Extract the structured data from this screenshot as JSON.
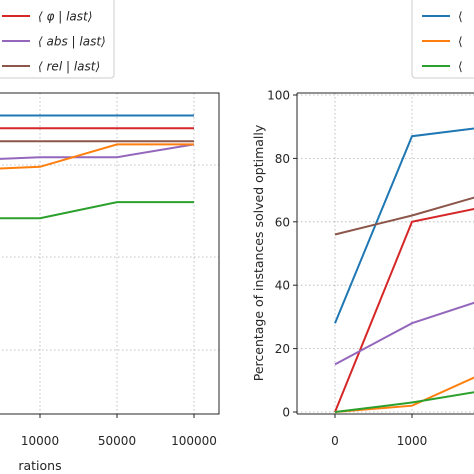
{
  "chart_data": [
    {
      "type": "line",
      "panel": "left",
      "categories": [
        "",
        "10000",
        "50000",
        "100000"
      ],
      "xlabel": "rations",
      "ylabel": "",
      "grid": true,
      "legend_position": "top-right",
      "series": [
        {
          "name": "⟨ φ | last⟩",
          "color": "#d62728",
          "values": [
            89,
            89,
            89,
            89
          ]
        },
        {
          "name": "⟨ abs | last⟩",
          "color": "#9467bd",
          "values": [
            79,
            80,
            80,
            84
          ]
        },
        {
          "name": "⟨ rel | last⟩",
          "color": "#8c564b",
          "values": [
            85,
            85,
            85,
            85
          ]
        },
        {
          "name": "",
          "color": "#1f77b4",
          "values": [
            93,
            93,
            93,
            93
          ]
        },
        {
          "name": "",
          "color": "#ff7f0e",
          "values": [
            76,
            77,
            84,
            84
          ]
        },
        {
          "name": "",
          "color": "#2ca02c",
          "values": [
            61,
            61,
            66,
            66
          ]
        }
      ]
    },
    {
      "type": "line",
      "panel": "right",
      "categories": [
        "0",
        "1000",
        ""
      ],
      "xlabel": "",
      "ylabel": "Percentage of instances solved optimally",
      "ylim": [
        0,
        100
      ],
      "yticks": [
        "0",
        "20",
        "40",
        "60",
        "80",
        "100"
      ],
      "grid": true,
      "legend_position": "top-right",
      "series": [
        {
          "name": "",
          "color": "#1f77b4",
          "values": [
            28,
            87,
            90
          ]
        },
        {
          "name": "",
          "color": "#d62728",
          "values": [
            0,
            60,
            65
          ]
        },
        {
          "name": "",
          "color": "#8c564b",
          "values": [
            56,
            62,
            69
          ]
        },
        {
          "name": "",
          "color": "#9467bd",
          "values": [
            15,
            28,
            36
          ]
        },
        {
          "name": "",
          "color": "#ff7f0e",
          "values": [
            0,
            2,
            13
          ]
        },
        {
          "name": "",
          "color": "#2ca02c",
          "values": [
            0,
            3,
            7
          ]
        }
      ]
    }
  ]
}
